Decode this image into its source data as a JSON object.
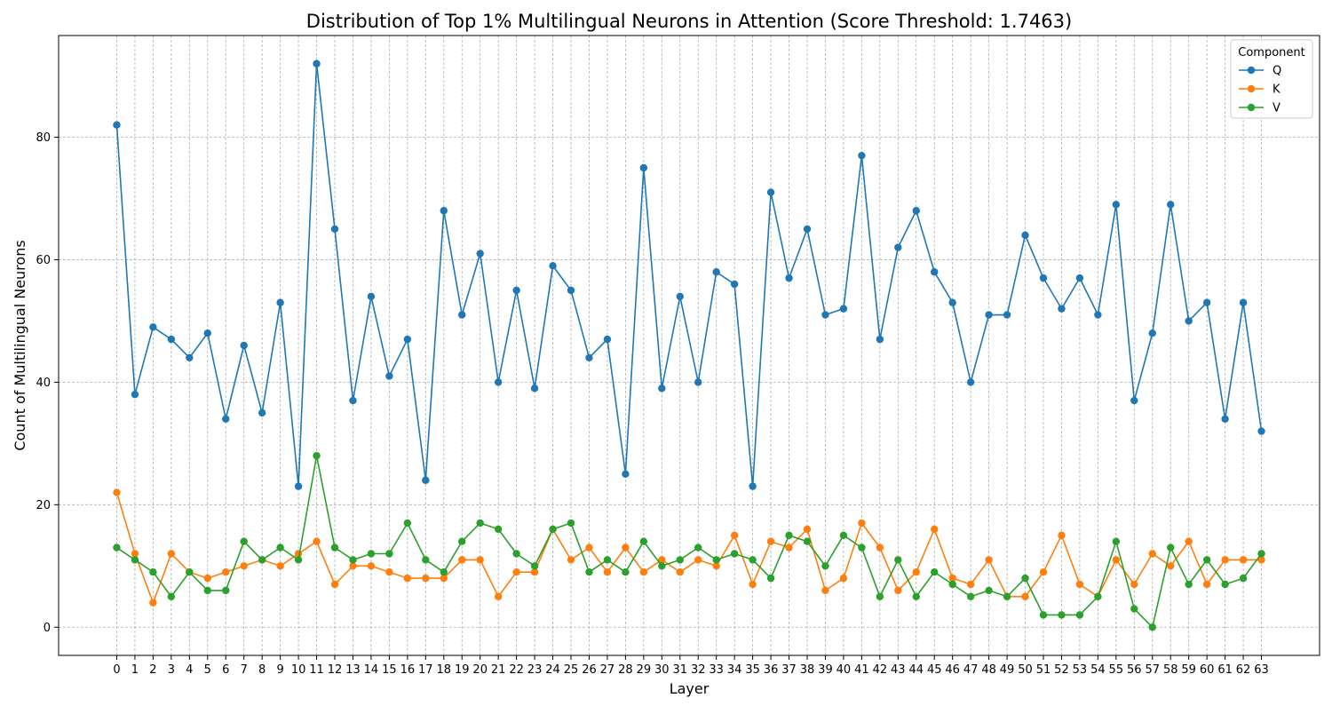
{
  "chart_data": {
    "type": "line",
    "title": "Distribution of Top 1% Multilingual Neurons in Attention (Score Threshold: 1.7463)",
    "xlabel": "Layer",
    "ylabel": "Count of Multilingual Neurons",
    "x": [
      0,
      1,
      2,
      3,
      4,
      5,
      6,
      7,
      8,
      9,
      10,
      11,
      12,
      13,
      14,
      15,
      16,
      17,
      18,
      19,
      20,
      21,
      22,
      23,
      24,
      25,
      26,
      27,
      28,
      29,
      30,
      31,
      32,
      33,
      34,
      35,
      36,
      37,
      38,
      39,
      40,
      41,
      42,
      43,
      44,
      45,
      46,
      47,
      48,
      49,
      50,
      51,
      52,
      53,
      54,
      55,
      56,
      57,
      58,
      59,
      60,
      61,
      62,
      63
    ],
    "xlim": [
      -3.2,
      66.2
    ],
    "ylim": [
      -4.6,
      96.6
    ],
    "yticks": [
      0,
      20,
      40,
      60,
      80
    ],
    "grid": true,
    "legend": {
      "title": "Component",
      "placement": "top-right"
    },
    "series": [
      {
        "name": "Q",
        "color": "#1f77b4",
        "values": [
          82,
          38,
          49,
          47,
          44,
          48,
          34,
          46,
          35,
          53,
          23,
          92,
          65,
          37,
          54,
          41,
          47,
          24,
          68,
          51,
          61,
          40,
          55,
          39,
          59,
          55,
          44,
          47,
          25,
          75,
          39,
          54,
          40,
          58,
          56,
          23,
          71,
          57,
          65,
          51,
          52,
          77,
          47,
          62,
          68,
          58,
          53,
          40,
          51,
          51,
          64,
          57,
          52,
          57,
          51,
          69,
          37,
          48,
          69,
          50,
          53,
          34,
          53,
          32
        ]
      },
      {
        "name": "K",
        "color": "#ff7f0e",
        "values": [
          22,
          12,
          4,
          12,
          9,
          8,
          9,
          10,
          11,
          10,
          12,
          14,
          7,
          10,
          10,
          9,
          8,
          8,
          8,
          11,
          11,
          5,
          9,
          9,
          16,
          11,
          13,
          9,
          13,
          9,
          11,
          9,
          11,
          10,
          15,
          7,
          14,
          13,
          16,
          6,
          8,
          17,
          13,
          6,
          9,
          16,
          8,
          7,
          11,
          5,
          5,
          9,
          15,
          7,
          5,
          11,
          7,
          12,
          10,
          14,
          7,
          11,
          11,
          11
        ]
      },
      {
        "name": "V",
        "color": "#2ca02c",
        "values": [
          13,
          11,
          9,
          5,
          9,
          6,
          6,
          14,
          11,
          13,
          11,
          28,
          13,
          11,
          12,
          12,
          17,
          11,
          9,
          14,
          17,
          16,
          12,
          10,
          16,
          17,
          9,
          11,
          9,
          14,
          10,
          11,
          13,
          11,
          12,
          11,
          8,
          15,
          14,
          10,
          15,
          13,
          5,
          11,
          5,
          9,
          7,
          5,
          6,
          5,
          8,
          2,
          2,
          2,
          5,
          14,
          3,
          0,
          13,
          7,
          11,
          7,
          8,
          12
        ]
      }
    ]
  }
}
